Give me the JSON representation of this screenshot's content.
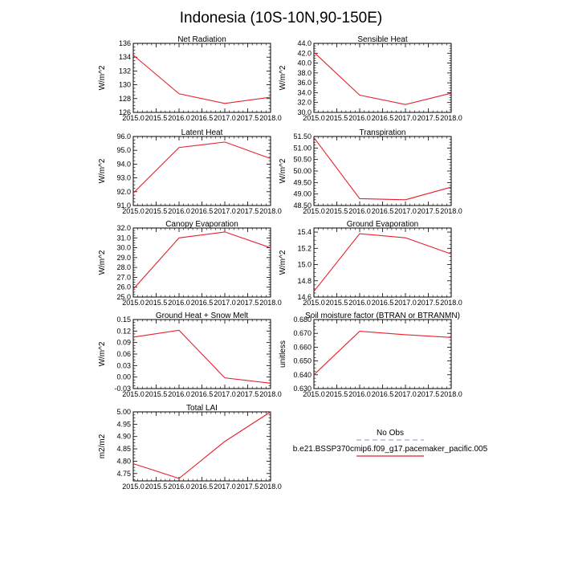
{
  "title": "Indonesia (10S-10N,90-150E)",
  "x_ticks": [
    "2015.0",
    "2015.5",
    "2016.0",
    "2016.5",
    "2017.0",
    "2017.5",
    "2018.0"
  ],
  "chart_data": [
    {
      "type": "line",
      "title": "Net Radiation",
      "xlabel": "",
      "ylabel": "W/m^2",
      "x": [
        2015.0,
        2016.0,
        2017.0,
        2018.0
      ],
      "xlim": [
        2015.0,
        2018.0
      ],
      "ylim": [
        126,
        136
      ],
      "yticks": [
        126,
        128,
        130,
        132,
        134,
        136
      ],
      "ytick_labels": [
        "126",
        "128",
        "130",
        "132",
        "134",
        "136"
      ],
      "series": [
        {
          "name": "b.e21.BSSP370cmip6.f09_g17.pacemaker_pacific.005",
          "color": "#e8202a",
          "values": [
            134.3,
            128.7,
            127.3,
            128.2
          ]
        }
      ]
    },
    {
      "type": "line",
      "title": "Sensible Heat",
      "xlabel": "",
      "ylabel": "W/m^2",
      "x": [
        2015.0,
        2016.0,
        2017.0,
        2018.0
      ],
      "xlim": [
        2015.0,
        2018.0
      ],
      "ylim": [
        30.0,
        44.0
      ],
      "yticks": [
        30,
        32,
        34,
        36,
        38,
        40,
        42,
        44
      ],
      "ytick_labels": [
        "30.0",
        "32.0",
        "34.0",
        "36.0",
        "38.0",
        "40.0",
        "42.0",
        "44.0"
      ],
      "series": [
        {
          "name": "b.e21.BSSP370cmip6.f09_g17.pacemaker_pacific.005",
          "color": "#e8202a",
          "values": [
            42.2,
            33.5,
            31.6,
            33.9
          ]
        }
      ]
    },
    {
      "type": "line",
      "title": "Latent Heat",
      "xlabel": "",
      "ylabel": "W/m^2",
      "x": [
        2015.0,
        2016.0,
        2017.0,
        2018.0
      ],
      "xlim": [
        2015.0,
        2018.0
      ],
      "ylim": [
        91.0,
        96.0
      ],
      "yticks": [
        91,
        92,
        93,
        94,
        95,
        96
      ],
      "ytick_labels": [
        "91.0",
        "92.0",
        "93.0",
        "94.0",
        "95.0",
        "96.0"
      ],
      "series": [
        {
          "name": "b.e21.BSSP370cmip6.f09_g17.pacemaker_pacific.005",
          "color": "#e8202a",
          "values": [
            91.9,
            95.2,
            95.6,
            94.4
          ]
        }
      ]
    },
    {
      "type": "line",
      "title": "Transpiration",
      "xlabel": "",
      "ylabel": "W/m^2",
      "x": [
        2015.0,
        2016.0,
        2017.0,
        2018.0
      ],
      "xlim": [
        2015.0,
        2018.0
      ],
      "ylim": [
        48.5,
        51.5
      ],
      "yticks": [
        48.5,
        49.0,
        49.5,
        50.0,
        50.5,
        51.0,
        51.5
      ],
      "ytick_labels": [
        "48.50",
        "49.00",
        "49.50",
        "50.00",
        "50.50",
        "51.00",
        "51.50"
      ],
      "series": [
        {
          "name": "b.e21.BSSP370cmip6.f09_g17.pacemaker_pacific.005",
          "color": "#e8202a",
          "values": [
            51.45,
            48.8,
            48.75,
            49.3
          ]
        }
      ]
    },
    {
      "type": "line",
      "title": "Canopy Evaporation",
      "xlabel": "",
      "ylabel": "W/m^2",
      "x": [
        2015.0,
        2016.0,
        2017.0,
        2018.0
      ],
      "xlim": [
        2015.0,
        2018.0
      ],
      "ylim": [
        25.0,
        32.0
      ],
      "yticks": [
        25,
        26,
        27,
        28,
        29,
        30,
        31,
        32
      ],
      "ytick_labels": [
        "25.0",
        "26.0",
        "27.0",
        "28.0",
        "29.0",
        "30.0",
        "31.0",
        "32.0"
      ],
      "series": [
        {
          "name": "b.e21.BSSP370cmip6.f09_g17.pacemaker_pacific.005",
          "color": "#e8202a",
          "values": [
            25.8,
            31.0,
            31.6,
            30.0
          ]
        }
      ]
    },
    {
      "type": "line",
      "title": "Ground Evaporation",
      "xlabel": "",
      "ylabel": "W/m^2",
      "x": [
        2015.0,
        2016.0,
        2017.0,
        2018.0
      ],
      "xlim": [
        2015.0,
        2018.0
      ],
      "ylim": [
        14.6,
        15.45
      ],
      "yticks": [
        14.6,
        14.8,
        15.0,
        15.2,
        15.4
      ],
      "ytick_labels": [
        "14.6",
        "14.8",
        "15.0",
        "15.2",
        "15.4"
      ],
      "series": [
        {
          "name": "b.e21.BSSP370cmip6.f09_g17.pacemaker_pacific.005",
          "color": "#e8202a",
          "values": [
            14.67,
            15.38,
            15.33,
            15.13
          ]
        }
      ]
    },
    {
      "type": "line",
      "title": "Ground Heat + Snow Melt",
      "xlabel": "",
      "ylabel": "W/m^2",
      "x": [
        2015.0,
        2016.0,
        2017.0,
        2018.0
      ],
      "xlim": [
        2015.0,
        2018.0
      ],
      "ylim": [
        -0.03,
        0.15
      ],
      "yticks": [
        -0.03,
        0.0,
        0.03,
        0.06,
        0.09,
        0.12,
        0.15
      ],
      "ytick_labels": [
        "-0.03",
        "0.00",
        "0.03",
        "0.06",
        "0.09",
        "0.12",
        "0.15"
      ],
      "series": [
        {
          "name": "b.e21.BSSP370cmip6.f09_g17.pacemaker_pacific.005",
          "color": "#e8202a",
          "values": [
            0.104,
            0.122,
            -0.002,
            -0.016
          ]
        }
      ]
    },
    {
      "type": "line",
      "title": "Soil moisture factor (BTRAN or BTRANMN)",
      "xlabel": "",
      "ylabel": "unitless",
      "x": [
        2015.0,
        2016.0,
        2017.0,
        2018.0
      ],
      "xlim": [
        2015.0,
        2018.0
      ],
      "ylim": [
        0.63,
        0.68
      ],
      "yticks": [
        0.63,
        0.64,
        0.65,
        0.66,
        0.67,
        0.68
      ],
      "ytick_labels": [
        "0.630",
        "0.640",
        "0.650",
        "0.660",
        "0.670",
        "0.680"
      ],
      "series": [
        {
          "name": "b.e21.BSSP370cmip6.f09_g17.pacemaker_pacific.005",
          "color": "#e8202a",
          "values": [
            0.64,
            0.6715,
            0.669,
            0.667
          ]
        }
      ]
    },
    {
      "type": "line",
      "title": "Total LAI",
      "xlabel": "",
      "ylabel": "m2/m2",
      "x": [
        2015.0,
        2016.0,
        2017.0,
        2018.0
      ],
      "xlim": [
        2015.0,
        2018.0
      ],
      "ylim": [
        4.72,
        5.0
      ],
      "yticks": [
        4.75,
        4.8,
        4.85,
        4.9,
        4.95,
        5.0
      ],
      "ytick_labels": [
        "4.75",
        "4.80",
        "4.85",
        "4.90",
        "4.95",
        "5.00"
      ],
      "series": [
        {
          "name": "b.e21.BSSP370cmip6.f09_g17.pacemaker_pacific.005",
          "color": "#e8202a",
          "values": [
            4.79,
            4.73,
            4.88,
            5.0
          ]
        }
      ]
    }
  ],
  "legend": {
    "items": [
      {
        "label": "No Obs",
        "color": "#a7a7d6",
        "dash": true
      },
      {
        "label": "b.e21.BSSP370cmip6.f09_g17.pacemaker_pacific.005",
        "color": "#e8202a",
        "dash": false
      }
    ]
  }
}
